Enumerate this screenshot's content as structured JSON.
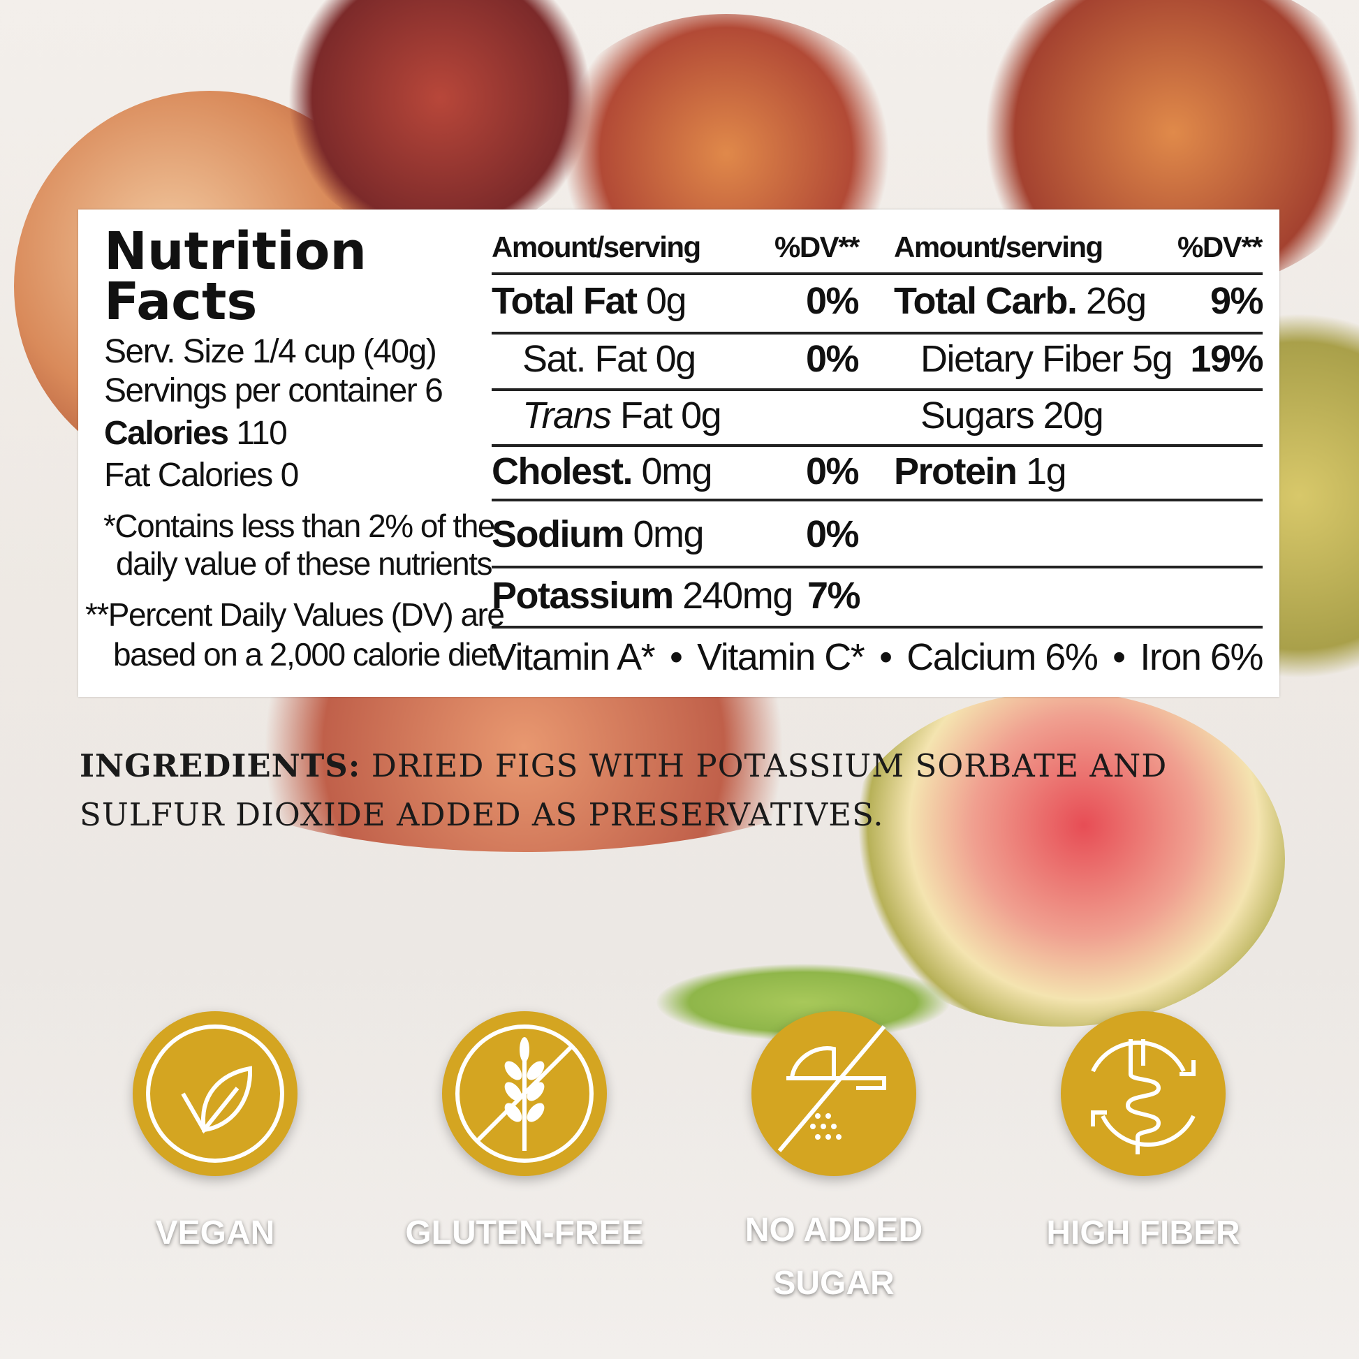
{
  "nutrition": {
    "title1": "Nutrition",
    "title2": "Facts",
    "serv_size": "Serv. Size 1/4 cup (40g)",
    "servings": "Servings per container 6",
    "calories_label": "Calories",
    "calories_value": "110",
    "fat_calories": "Fat Calories 0",
    "note1a": "*Contains less than 2% of  the",
    "note1b": "daily value of these nutrients",
    "note2a": "**Percent Daily Values (DV) are",
    "note2b": "based on a 2,000 calorie diet.",
    "header_amount": "Amount/serving",
    "header_dv": "%DV**",
    "left_rows": [
      {
        "label": "Total Fat",
        "amount": "0g",
        "dv": "0%"
      },
      {
        "label": "Sat. Fat",
        "amount": "0g",
        "dv": "0%"
      },
      {
        "label": "Trans",
        "amount": "Fat 0g",
        "dv": ""
      },
      {
        "label": "Cholest.",
        "amount": "0mg",
        "dv": "0%"
      },
      {
        "label": "Sodium",
        "amount": "0mg",
        "dv": "0%"
      },
      {
        "label": "Potassium",
        "amount": "240mg",
        "dv": "7%"
      }
    ],
    "right_rows": [
      {
        "label": "Total Carb.",
        "amount": "26g",
        "dv": "9%"
      },
      {
        "label": "Dietary Fiber",
        "amount": "5g",
        "dv": "19%"
      },
      {
        "label": "Sugars",
        "amount": "20g",
        "dv": ""
      },
      {
        "label": "Protein",
        "amount": "1g",
        "dv": ""
      }
    ],
    "vitamins": [
      "Vitamin A*",
      "Vitamin C*",
      "Calcium 6%",
      "Iron 6%"
    ],
    "bullet": "•"
  },
  "ingredients": {
    "label": "INGREDIENTS:",
    "text": "DRIED FIGS WITH POTASSIUM SORBATE AND SULFUR DIOXIDE ADDED AS PRESERVATIVES."
  },
  "badges": [
    {
      "label": "VEGAN",
      "icon": "leaf-icon"
    },
    {
      "label": "GLUTEN-FREE",
      "icon": "wheat-crossed-icon"
    },
    {
      "label": "NO ADDED SUGAR",
      "icon": "sugar-crossed-icon"
    },
    {
      "label": "HIGH FIBER",
      "icon": "intestine-icon"
    }
  ],
  "colors": {
    "badge": "#d4a521",
    "label": "#ffffff"
  }
}
